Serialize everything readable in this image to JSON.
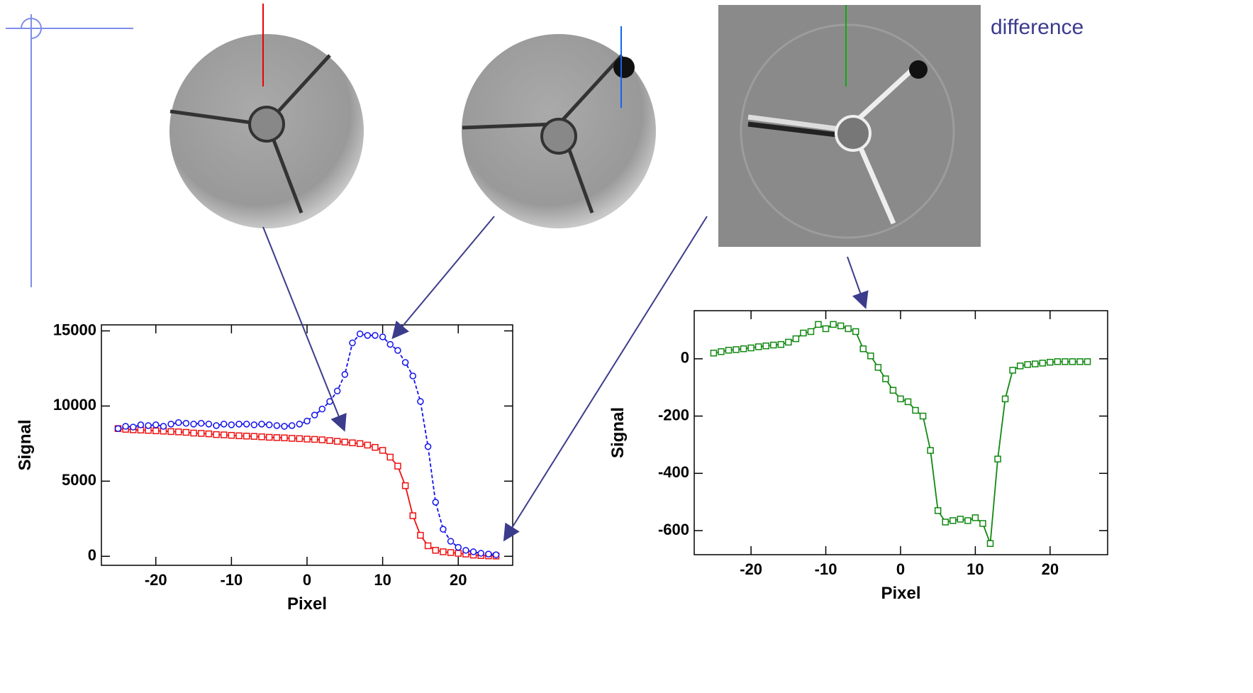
{
  "image_label": "difference",
  "chart_data": [
    {
      "type": "line",
      "x_label": "Pixel",
      "y_label": "Signal",
      "x": [
        -25,
        -24,
        -23,
        -22,
        -21,
        -20,
        -19,
        -18,
        -17,
        -16,
        -15,
        -14,
        -13,
        -12,
        -11,
        -10,
        -9,
        -8,
        -7,
        -6,
        -5,
        -4,
        -3,
        -2,
        -1,
        0,
        1,
        2,
        3,
        4,
        5,
        6,
        7,
        8,
        9,
        10,
        11,
        12,
        13,
        14,
        15,
        16,
        17,
        18,
        19,
        20,
        21,
        22,
        23,
        24,
        25
      ],
      "series": [
        {
          "color": "#ee1111",
          "marker": "square",
          "dash": false,
          "values": [
            8500,
            8450,
            8420,
            8400,
            8380,
            8350,
            8330,
            8300,
            8280,
            8250,
            8200,
            8180,
            8150,
            8100,
            8080,
            8050,
            8020,
            8000,
            7980,
            7950,
            7920,
            7900,
            7880,
            7850,
            7830,
            7800,
            7780,
            7750,
            7700,
            7650,
            7600,
            7550,
            7500,
            7400,
            7250,
            7050,
            6600,
            6000,
            4700,
            2700,
            1400,
            700,
            400,
            300,
            250,
            200,
            150,
            80,
            50,
            30,
            20
          ]
        },
        {
          "color": "#1111ee",
          "marker": "circle",
          "dash": true,
          "values": [
            8500,
            8650,
            8600,
            8750,
            8700,
            8750,
            8650,
            8800,
            8900,
            8850,
            8800,
            8850,
            8800,
            8700,
            8800,
            8750,
            8800,
            8800,
            8750,
            8800,
            8750,
            8700,
            8650,
            8700,
            8800,
            9000,
            9400,
            9800,
            10300,
            11000,
            12100,
            14200,
            14800,
            14700,
            14700,
            14600,
            14100,
            13700,
            12900,
            12000,
            10300,
            7300,
            3600,
            1800,
            1000,
            600,
            400,
            300,
            200,
            150,
            100
          ]
        }
      ],
      "xlim": [
        -27.2,
        27.2
      ],
      "xticks": [
        -20,
        -10,
        0,
        10,
        20
      ],
      "ylim": [
        -600,
        15400
      ],
      "yticks": [
        0,
        5000,
        10000,
        15000
      ]
    },
    {
      "type": "line",
      "x_label": "Pixel",
      "y_label": "Signal",
      "x": [
        -25,
        -24,
        -23,
        -22,
        -21,
        -20,
        -19,
        -18,
        -17,
        -16,
        -15,
        -14,
        -13,
        -12,
        -11,
        -10,
        -9,
        -8,
        -7,
        -6,
        -5,
        -4,
        -3,
        -2,
        -1,
        0,
        1,
        2,
        3,
        4,
        5,
        6,
        7,
        8,
        9,
        10,
        11,
        12,
        13,
        14,
        15,
        16,
        17,
        18,
        19,
        20,
        21,
        22,
        23,
        24,
        25
      ],
      "series": [
        {
          "color": "#118811",
          "marker": "square",
          "dash": false,
          "values": [
            20,
            25,
            30,
            32,
            35,
            38,
            42,
            45,
            48,
            50,
            58,
            70,
            90,
            95,
            120,
            105,
            120,
            115,
            105,
            95,
            35,
            10,
            -30,
            -70,
            -110,
            -140,
            -150,
            -180,
            -200,
            -320,
            -530,
            -570,
            -565,
            -560,
            -565,
            -555,
            -575,
            -645,
            -350,
            -140,
            -40,
            -25,
            -20,
            -18,
            -15,
            -12,
            -10,
            -10,
            -10,
            -10,
            -10
          ]
        }
      ],
      "xlim": [
        -27.6,
        27.7
      ],
      "xticks": [
        -20,
        -10,
        0,
        10,
        20
      ],
      "ylim": [
        -684,
        168
      ],
      "yticks": [
        0,
        -200,
        -400,
        -600
      ]
    }
  ]
}
